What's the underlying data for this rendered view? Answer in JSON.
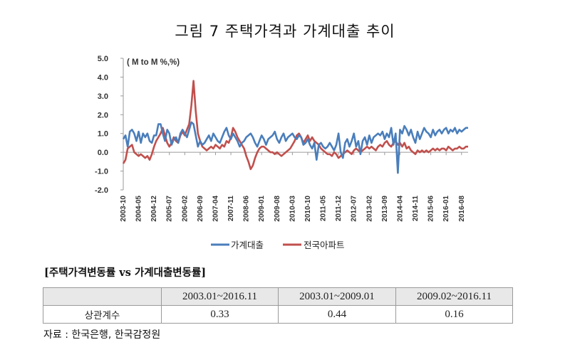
{
  "title": "그림 7 주택가격과 가계대출 추이",
  "chart_data": {
    "type": "line",
    "title": "그림 7 주택가격과 가계대출 추이",
    "unit_label": "( M to M %,%)",
    "ylim": [
      -2.0,
      5.0
    ],
    "yticks": [
      "5.0",
      "4.0",
      "3.0",
      "2.0",
      "1.0",
      "0.0",
      "-1.0",
      "-2.0"
    ],
    "yticks_values": [
      5,
      4,
      3,
      2,
      1,
      0,
      -1,
      -2
    ],
    "x_tick_labels": [
      "2003-10",
      "2004-05",
      "2004-12",
      "2005-07",
      "2006-02",
      "2006-09",
      "2007-04",
      "2007-11",
      "2008-06",
      "2009-01",
      "2009-08",
      "2010-03",
      "2010-10",
      "2011-05",
      "2011-12",
      "2012-07",
      "2013-02",
      "2013-09",
      "2014-04",
      "2014-11",
      "2015-06",
      "2016-01",
      "2016-08"
    ],
    "x_start": "2003-10",
    "x_end": "2016-11",
    "n_points": 158,
    "series": [
      {
        "name": "가계대출",
        "color": "#4a7ebb",
        "anchors": [
          [
            0,
            0.7
          ],
          [
            1,
            0.9
          ],
          [
            2,
            0.3
          ],
          [
            3,
            1.1
          ],
          [
            4,
            1.2
          ],
          [
            5,
            1.0
          ],
          [
            6,
            0.6
          ],
          [
            7,
            1.1
          ],
          [
            8,
            0.5
          ],
          [
            9,
            1.0
          ],
          [
            10,
            0.8
          ],
          [
            11,
            1.0
          ],
          [
            12,
            0.6
          ],
          [
            13,
            0.5
          ],
          [
            14,
            0.9
          ],
          [
            15,
            0.9
          ],
          [
            16,
            1.5
          ],
          [
            17,
            1.5
          ],
          [
            18,
            1.0
          ],
          [
            19,
            0.6
          ],
          [
            20,
            1.2
          ],
          [
            21,
            1.0
          ],
          [
            22,
            0.4
          ],
          [
            23,
            0.7
          ],
          [
            24,
            0.8
          ],
          [
            25,
            0.5
          ],
          [
            26,
            1.0
          ],
          [
            27,
            1.2
          ],
          [
            28,
            1.0
          ],
          [
            29,
            0.8
          ],
          [
            30,
            1.2
          ],
          [
            31,
            1.6
          ],
          [
            32,
            1.5
          ],
          [
            33,
            0.9
          ],
          [
            34,
            0.3
          ],
          [
            35,
            0.6
          ],
          [
            36,
            0.4
          ],
          [
            37,
            0.5
          ],
          [
            38,
            0.7
          ],
          [
            39,
            0.9
          ],
          [
            40,
            0.6
          ],
          [
            41,
            1.0
          ],
          [
            42,
            0.8
          ],
          [
            43,
            0.6
          ],
          [
            44,
            0.5
          ],
          [
            45,
            0.8
          ],
          [
            46,
            1.1
          ],
          [
            47,
            1.3
          ],
          [
            48,
            0.9
          ],
          [
            49,
            0.7
          ],
          [
            50,
            1.0
          ],
          [
            51,
            0.8
          ],
          [
            52,
            0.6
          ],
          [
            53,
            0.3
          ],
          [
            54,
            0.5
          ],
          [
            55,
            0.6
          ],
          [
            56,
            0.8
          ],
          [
            57,
            0.9
          ],
          [
            58,
            1.0
          ],
          [
            59,
            0.8
          ],
          [
            60,
            0.5
          ],
          [
            61,
            0.3
          ],
          [
            62,
            0.6
          ],
          [
            63,
            0.9
          ],
          [
            64,
            0.7
          ],
          [
            65,
            0.4
          ],
          [
            66,
            0.7
          ],
          [
            67,
            0.8
          ],
          [
            68,
            0.9
          ],
          [
            69,
            1.1
          ],
          [
            70,
            0.7
          ],
          [
            71,
            0.5
          ],
          [
            72,
            0.8
          ],
          [
            73,
            1.0
          ],
          [
            74,
            0.6
          ],
          [
            75,
            0.8
          ],
          [
            76,
            0.9
          ],
          [
            77,
            1.0
          ],
          [
            78,
            0.8
          ],
          [
            79,
            0.7
          ],
          [
            80,
            0.9
          ],
          [
            81,
            0.8
          ],
          [
            82,
            0.4
          ],
          [
            83,
            0.5
          ],
          [
            84,
            0.7
          ],
          [
            85,
            0.4
          ],
          [
            86,
            0.2
          ],
          [
            87,
            0.5
          ],
          [
            88,
            -0.4
          ],
          [
            89,
            0.4
          ],
          [
            90,
            0.5
          ],
          [
            91,
            0.3
          ],
          [
            92,
            0.2
          ],
          [
            93,
            0.3
          ],
          [
            94,
            0.5
          ],
          [
            95,
            0.3
          ],
          [
            96,
            0.1
          ],
          [
            97,
            0.4
          ],
          [
            98,
            1.0
          ],
          [
            99,
            0.0
          ],
          [
            100,
            -0.3
          ],
          [
            101,
            0.5
          ],
          [
            102,
            0.7
          ],
          [
            103,
            0.3
          ],
          [
            104,
            0.6
          ],
          [
            105,
            1.0
          ],
          [
            106,
            0.3
          ],
          [
            107,
            0.6
          ],
          [
            108,
            -0.1
          ],
          [
            109,
            0.6
          ],
          [
            110,
            0.8
          ],
          [
            111,
            0.4
          ],
          [
            112,
            0.9
          ],
          [
            113,
            0.5
          ],
          [
            114,
            0.8
          ],
          [
            115,
            0.9
          ],
          [
            116,
            1.0
          ],
          [
            117,
            0.9
          ],
          [
            118,
            1.1
          ],
          [
            119,
            0.7
          ],
          [
            120,
            1.0
          ],
          [
            121,
            0.8
          ],
          [
            122,
            1.3
          ],
          [
            123,
            0.4
          ],
          [
            124,
            1.0
          ],
          [
            125,
            -1.1
          ],
          [
            126,
            1.2
          ],
          [
            127,
            1.0
          ],
          [
            128,
            1.4
          ],
          [
            129,
            1.2
          ],
          [
            130,
            0.9
          ],
          [
            131,
            1.2
          ],
          [
            132,
            0.8
          ],
          [
            133,
            0.5
          ],
          [
            134,
            1.1
          ],
          [
            135,
            0.7
          ],
          [
            136,
            1.0
          ],
          [
            137,
            1.3
          ],
          [
            138,
            1.1
          ],
          [
            139,
            1.0
          ],
          [
            140,
            0.8
          ],
          [
            141,
            1.2
          ],
          [
            142,
            0.9
          ],
          [
            143,
            1.1
          ],
          [
            144,
            1.2
          ],
          [
            145,
            1.0
          ],
          [
            146,
            1.2
          ],
          [
            147,
            1.3
          ],
          [
            148,
            1.0
          ],
          [
            149,
            1.2
          ],
          [
            150,
            1.1
          ],
          [
            151,
            1.3
          ],
          [
            152,
            1.0
          ],
          [
            153,
            1.2
          ],
          [
            154,
            1.1
          ],
          [
            155,
            1.2
          ],
          [
            156,
            1.3
          ],
          [
            157,
            1.3
          ]
        ]
      },
      {
        "name": "전국아파트",
        "color": "#c0504d",
        "anchors": [
          [
            0,
            -0.6
          ],
          [
            1,
            -0.4
          ],
          [
            2,
            0.2
          ],
          [
            3,
            0.3
          ],
          [
            4,
            0.4
          ],
          [
            5,
            0.0
          ],
          [
            6,
            -0.1
          ],
          [
            7,
            -0.2
          ],
          [
            8,
            -0.1
          ],
          [
            9,
            -0.2
          ],
          [
            10,
            -0.3
          ],
          [
            11,
            -0.2
          ],
          [
            12,
            -0.4
          ],
          [
            13,
            -0.1
          ],
          [
            14,
            0.3
          ],
          [
            15,
            0.6
          ],
          [
            16,
            0.8
          ],
          [
            17,
            1.0
          ],
          [
            18,
            1.3
          ],
          [
            19,
            0.9
          ],
          [
            20,
            0.5
          ],
          [
            21,
            0.3
          ],
          [
            22,
            0.5
          ],
          [
            23,
            0.8
          ],
          [
            24,
            0.6
          ],
          [
            25,
            0.5
          ],
          [
            26,
            0.9
          ],
          [
            27,
            1.1
          ],
          [
            28,
            0.9
          ],
          [
            29,
            1.2
          ],
          [
            30,
            1.5
          ],
          [
            31,
            2.5
          ],
          [
            32,
            3.8
          ],
          [
            33,
            2.2
          ],
          [
            34,
            1.0
          ],
          [
            35,
            0.6
          ],
          [
            36,
            0.3
          ],
          [
            37,
            0.2
          ],
          [
            38,
            0.1
          ],
          [
            39,
            0.2
          ],
          [
            40,
            0.3
          ],
          [
            41,
            0.2
          ],
          [
            42,
            0.4
          ],
          [
            43,
            0.3
          ],
          [
            44,
            0.2
          ],
          [
            45,
            0.4
          ],
          [
            46,
            0.3
          ],
          [
            47,
            0.6
          ],
          [
            48,
            0.5
          ],
          [
            49,
            0.8
          ],
          [
            50,
            1.3
          ],
          [
            51,
            1.1
          ],
          [
            52,
            0.8
          ],
          [
            53,
            0.6
          ],
          [
            54,
            0.4
          ],
          [
            55,
            0.2
          ],
          [
            56,
            -0.2
          ],
          [
            57,
            -0.5
          ],
          [
            58,
            -0.9
          ],
          [
            59,
            -0.7
          ],
          [
            60,
            -0.3
          ],
          [
            61,
            0.0
          ],
          [
            62,
            0.2
          ],
          [
            63,
            0.3
          ],
          [
            64,
            0.3
          ],
          [
            65,
            0.2
          ],
          [
            66,
            0.1
          ],
          [
            67,
            0.0
          ],
          [
            68,
            0.0
          ],
          [
            69,
            -0.1
          ],
          [
            70,
            0.0
          ],
          [
            71,
            -0.1
          ],
          [
            72,
            -0.2
          ],
          [
            73,
            -0.1
          ],
          [
            74,
            0.0
          ],
          [
            75,
            0.1
          ],
          [
            76,
            0.2
          ],
          [
            77,
            0.4
          ],
          [
            78,
            0.6
          ],
          [
            79,
            0.9
          ],
          [
            80,
            1.0
          ],
          [
            81,
            0.8
          ],
          [
            82,
            0.5
          ],
          [
            83,
            0.7
          ],
          [
            84,
            0.9
          ],
          [
            85,
            0.6
          ],
          [
            86,
            0.8
          ],
          [
            87,
            0.6
          ],
          [
            88,
            0.5
          ],
          [
            89,
            0.4
          ],
          [
            90,
            0.2
          ],
          [
            91,
            0.1
          ],
          [
            92,
            0.0
          ],
          [
            93,
            -0.1
          ],
          [
            94,
            -0.1
          ],
          [
            95,
            -0.2
          ],
          [
            96,
            0.0
          ],
          [
            97,
            -0.1
          ],
          [
            98,
            -0.3
          ],
          [
            99,
            -0.2
          ],
          [
            100,
            -0.1
          ],
          [
            101,
            0.0
          ],
          [
            102,
            0.1
          ],
          [
            103,
            0.0
          ],
          [
            104,
            -0.1
          ],
          [
            105,
            0.1
          ],
          [
            106,
            0.2
          ],
          [
            107,
            0.1
          ],
          [
            108,
            0.0
          ],
          [
            109,
            0.1
          ],
          [
            110,
            0.2
          ],
          [
            111,
            0.3
          ],
          [
            112,
            0.2
          ],
          [
            113,
            0.3
          ],
          [
            114,
            0.2
          ],
          [
            115,
            0.1
          ],
          [
            116,
            0.3
          ],
          [
            117,
            0.4
          ],
          [
            118,
            0.3
          ],
          [
            119,
            0.5
          ],
          [
            120,
            0.6
          ],
          [
            121,
            0.4
          ],
          [
            122,
            0.3
          ],
          [
            123,
            0.5
          ],
          [
            124,
            0.6
          ],
          [
            125,
            0.4
          ],
          [
            126,
            0.5
          ],
          [
            127,
            0.3
          ],
          [
            128,
            0.5
          ],
          [
            129,
            0.2
          ],
          [
            130,
            0.3
          ],
          [
            131,
            0.1
          ],
          [
            132,
            0.0
          ],
          [
            133,
            -0.1
          ],
          [
            134,
            0.1
          ],
          [
            135,
            0.0
          ],
          [
            136,
            0.1
          ],
          [
            137,
            0.0
          ],
          [
            138,
            0.1
          ],
          [
            139,
            0.0
          ],
          [
            140,
            0.1
          ],
          [
            141,
            0.2
          ],
          [
            142,
            0.1
          ],
          [
            143,
            0.2
          ],
          [
            144,
            0.1
          ],
          [
            145,
            0.2
          ],
          [
            146,
            0.2
          ],
          [
            147,
            0.1
          ],
          [
            148,
            0.3
          ],
          [
            149,
            0.2
          ],
          [
            150,
            0.1
          ],
          [
            151,
            0.2
          ],
          [
            152,
            0.2
          ],
          [
            153,
            0.3
          ],
          [
            154,
            0.2
          ],
          [
            155,
            0.2
          ],
          [
            156,
            0.3
          ],
          [
            157,
            0.3
          ]
        ]
      }
    ]
  },
  "table": {
    "heading": "[주택가격변동률 vs 가계대출변동률]",
    "columns": [
      "",
      "2003.01~2016.11",
      "2003.01~2009.01",
      "2009.02~2016.11"
    ],
    "row_label": "상관계수",
    "values": [
      "0.33",
      "0.44",
      "0.16"
    ]
  },
  "source": "자료 : 한국은행, 한국감정원"
}
